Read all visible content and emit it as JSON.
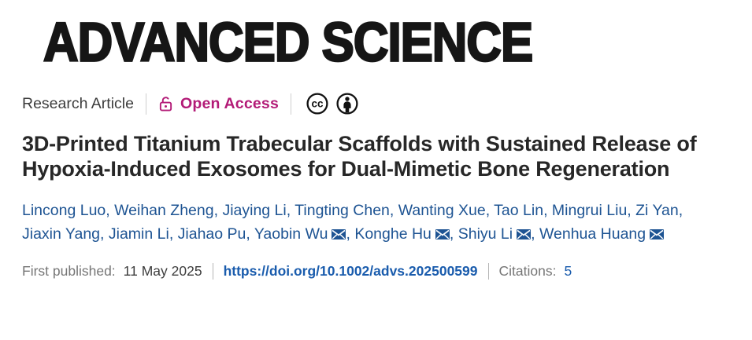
{
  "journal": {
    "logo_text": "ADVANCED SCIENCE"
  },
  "meta": {
    "article_type": "Research Article",
    "open_access_label": "Open Access",
    "cc_text": "cc",
    "icons": {
      "lock": "open-lock-icon",
      "cc": "cc-icon",
      "by": "cc-by-person-icon",
      "mail": "envelope-icon"
    }
  },
  "title": "3D-Printed Titanium Trabecular Scaffolds with Sustained Release of Hypoxia-Induced Exosomes for Dual-Mimetic Bone Regeneration",
  "authors": {
    "separator": ", ",
    "list": [
      {
        "name": "Lincong Luo"
      },
      {
        "name": "Weihan Zheng"
      },
      {
        "name": "Jiaying Li"
      },
      {
        "name": "Tingting Chen"
      },
      {
        "name": "Wanting Xue"
      },
      {
        "name": "Tao Lin"
      },
      {
        "name": "Mingrui Liu"
      },
      {
        "name": "Zi Yan",
        "break_after": true
      },
      {
        "name": "Jiaxin Yang"
      },
      {
        "name": "Jiamin Li"
      },
      {
        "name": "Jiahao Pu"
      },
      {
        "name": "Yaobin Wu",
        "has_email": true
      },
      {
        "name": "Konghe Hu",
        "has_email": true
      },
      {
        "name": "Shiyu Li",
        "has_email": true
      },
      {
        "name": "Wenhua Huang",
        "has_email": true
      }
    ]
  },
  "pubinfo": {
    "first_published_label": "First published:",
    "date": "11 May 2025",
    "doi_link": "https://doi.org/10.1002/advs.202500599",
    "citations_label": "Citations:",
    "citations_count": "5"
  },
  "colors": {
    "accent_magenta": "#b31b77",
    "author_blue": "#1e5493",
    "doi_blue": "#1a5cad",
    "title_text": "#272727",
    "meta_text": "#3d3d3d",
    "muted_gray": "#767676"
  }
}
